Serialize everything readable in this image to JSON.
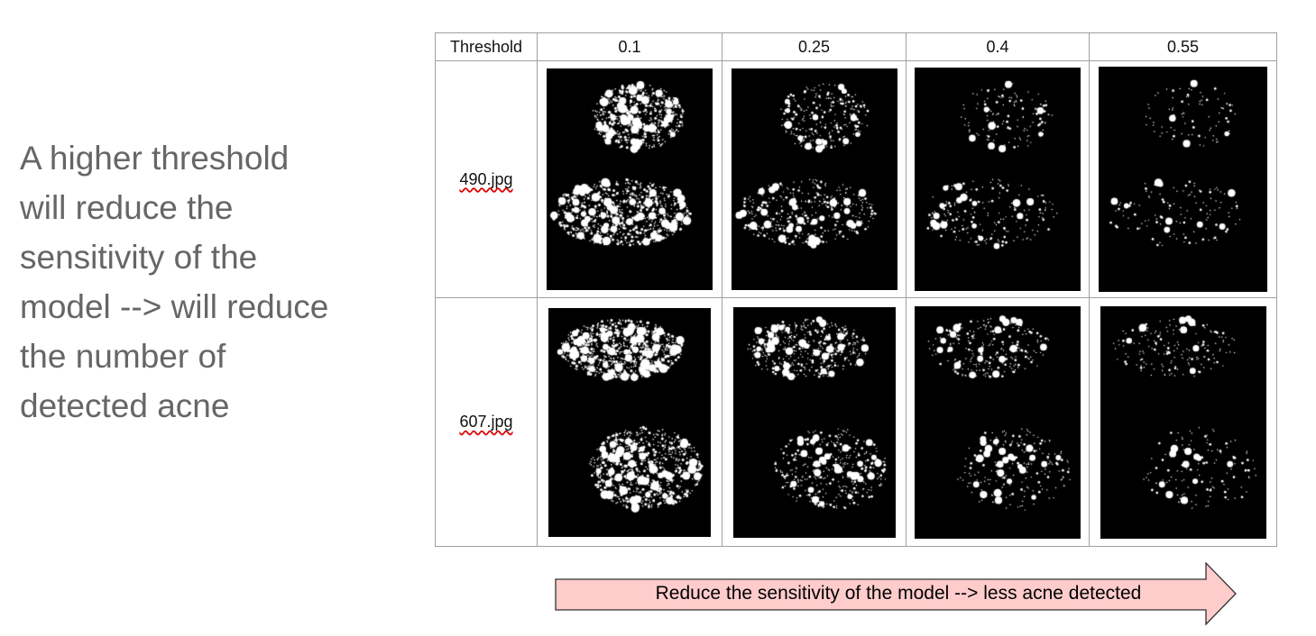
{
  "description": [
    "A higher threshold",
    "will reduce the",
    "sensitivity of the",
    "model --> will reduce",
    "the number of",
    "detected acne"
  ],
  "table": {
    "header_label": "Threshold",
    "thresholds": [
      "0.1",
      "0.25",
      "0.4",
      "0.55"
    ],
    "rows": [
      {
        "label": "490.jpg"
      },
      {
        "label": "607.jpg"
      }
    ]
  },
  "arrow": {
    "label": "Reduce the sensitivity of the model --> less acne detected",
    "fill": "#ffcccc",
    "stroke": "#333333"
  }
}
